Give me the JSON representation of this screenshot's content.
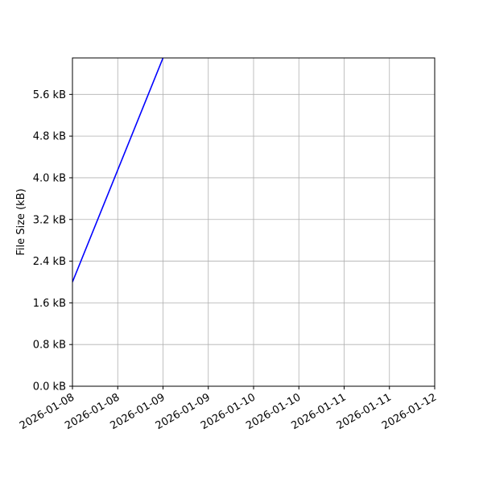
{
  "chart_data": {
    "type": "line",
    "title": "",
    "xlabel": "",
    "ylabel": "File Size (kB)",
    "xlim": [
      "2026-01-08T00:00",
      "2026-01-12T00:00"
    ],
    "ylim": [
      0,
      6.3
    ],
    "grid": true,
    "x_ticks": [
      "2026-01-08T00:00",
      "2026-01-08T12:00",
      "2026-01-09T00:00",
      "2026-01-09T12:00",
      "2026-01-10T00:00",
      "2026-01-10T12:00",
      "2026-01-11T00:00",
      "2026-01-11T12:00",
      "2026-01-12T00:00"
    ],
    "x_tick_labels": [
      "2026-01-08",
      "2026-01-08",
      "2026-01-09",
      "2026-01-09",
      "2026-01-10",
      "2026-01-10",
      "2026-01-11",
      "2026-01-11",
      "2026-01-12"
    ],
    "y_ticks": [
      0,
      0.8,
      1.6,
      2.4,
      3.2,
      4.0,
      4.8,
      5.6
    ],
    "y_tick_labels": [
      "0.0 kB",
      "0.8 kB",
      "1.6 kB",
      "2.4 kB",
      "3.2 kB",
      "4.0 kB",
      "4.8 kB",
      "5.6 kB"
    ],
    "series": [
      {
        "color": "#0000ff",
        "x": [
          "2026-01-08T00:00",
          "2026-01-09T00:00"
        ],
        "y": [
          2.0,
          6.3
        ]
      }
    ]
  }
}
